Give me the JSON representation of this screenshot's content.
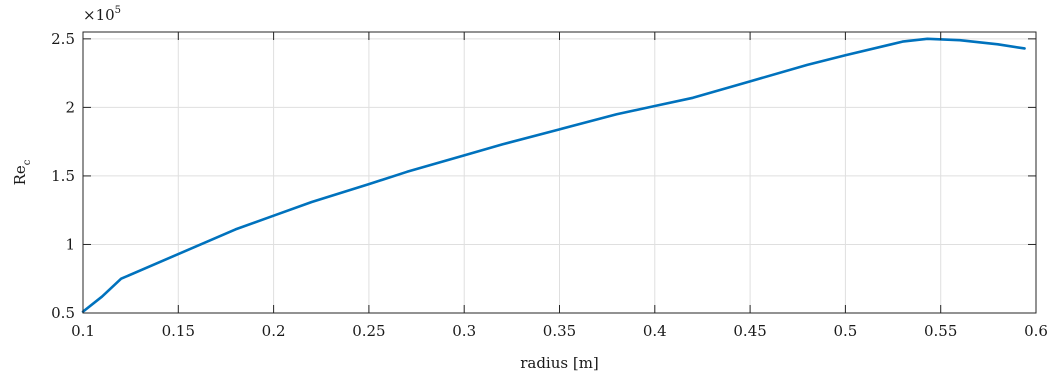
{
  "chart_data": {
    "type": "line",
    "title": "",
    "xlabel": "radius [m]",
    "ylabel": "Re",
    "ylabel_subscript": "c",
    "y_multiplier_base": "×10",
    "y_multiplier_exponent": "5",
    "xlim": [
      0.1,
      0.6
    ],
    "ylim": [
      0.5,
      2.55
    ],
    "x_ticks": [
      0.1,
      0.15,
      0.2,
      0.25,
      0.3,
      0.35,
      0.4,
      0.45,
      0.5,
      0.55,
      0.6
    ],
    "x_tick_labels": [
      "0.1",
      "0.15",
      "0.2",
      "0.25",
      "0.3",
      "0.35",
      "0.4",
      "0.45",
      "0.5",
      "0.55",
      "0.6"
    ],
    "y_ticks": [
      0.5,
      1,
      1.5,
      2,
      2.5
    ],
    "y_tick_labels": [
      "0.5",
      "1",
      "1.5",
      "2",
      "2.5"
    ],
    "grid": true,
    "line_color": "#0072BD",
    "series": [
      {
        "x": [
          0.1,
          0.11,
          0.12,
          0.15,
          0.18,
          0.2,
          0.22,
          0.25,
          0.27,
          0.3,
          0.32,
          0.35,
          0.38,
          0.4,
          0.42,
          0.45,
          0.48,
          0.5,
          0.53,
          0.543,
          0.56,
          0.58,
          0.594
        ],
        "y": [
          0.51,
          0.62,
          0.75,
          0.93,
          1.11,
          1.21,
          1.31,
          1.44,
          1.53,
          1.65,
          1.73,
          1.84,
          1.95,
          2.01,
          2.07,
          2.19,
          2.31,
          2.38,
          2.48,
          2.5,
          2.49,
          2.46,
          2.43
        ]
      }
    ]
  }
}
